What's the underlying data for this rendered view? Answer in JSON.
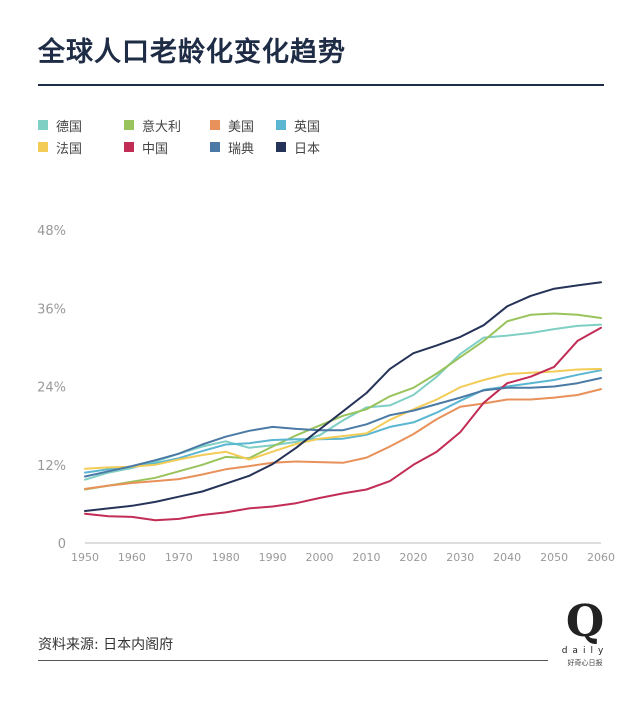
{
  "title": "全球人口老龄化变化趋势",
  "source": "资料来源: 日本内阁府",
  "logo": {
    "letter": "Q",
    "word": "daily",
    "sub": "好奇心日报"
  },
  "colors": {
    "title": "#1e2c45",
    "axis": "#999999"
  },
  "chart_data": {
    "type": "line",
    "title": "全球人口老龄化变化趋势",
    "xlabel": "",
    "ylabel": "",
    "x": [
      1950,
      1955,
      1960,
      1965,
      1970,
      1975,
      1980,
      1985,
      1990,
      1995,
      2000,
      2005,
      2010,
      2015,
      2020,
      2025,
      2030,
      2035,
      2040,
      2045,
      2050,
      2055,
      2060
    ],
    "xticks": [
      "1950",
      "1960",
      "1970",
      "1980",
      "1990",
      "2000",
      "2010",
      "2020",
      "2030",
      "2040",
      "2050",
      "2060"
    ],
    "yticks": [
      "0",
      "12%",
      "24%",
      "36%",
      "48%"
    ],
    "ylim": [
      0,
      48
    ],
    "xlim": [
      1950,
      2060
    ],
    "grid": false,
    "legend_position": "top-left",
    "series": [
      {
        "name": "德国",
        "color": "#7fcfc4",
        "values": [
          9.7,
          10.8,
          11.5,
          12.5,
          13.7,
          14.8,
          15.6,
          14.6,
          15.0,
          15.5,
          16.5,
          18.8,
          20.8,
          21.1,
          22.7,
          25.5,
          29.0,
          31.5,
          31.8,
          32.2,
          32.8,
          33.3,
          33.5
        ]
      },
      {
        "name": "意大利",
        "color": "#99c35c",
        "values": [
          8.2,
          8.8,
          9.4,
          10.0,
          11.0,
          12.0,
          13.2,
          13.0,
          14.8,
          16.5,
          18.0,
          19.5,
          20.5,
          22.5,
          23.8,
          26.0,
          28.5,
          31.0,
          34.0,
          35.0,
          35.2,
          35.0,
          34.5
        ]
      },
      {
        "name": "美国",
        "color": "#e8915a",
        "values": [
          8.3,
          8.8,
          9.2,
          9.5,
          9.8,
          10.5,
          11.3,
          11.8,
          12.3,
          12.5,
          12.4,
          12.3,
          13.1,
          14.8,
          16.7,
          19.0,
          20.9,
          21.4,
          22.0,
          22.0,
          22.3,
          22.7,
          23.6
        ]
      },
      {
        "name": "英国",
        "color": "#5bb6d1",
        "values": [
          10.8,
          11.3,
          11.7,
          12.2,
          13.0,
          14.1,
          15.1,
          15.3,
          15.8,
          15.9,
          15.9,
          16.0,
          16.6,
          17.8,
          18.5,
          20.0,
          21.8,
          23.5,
          24.0,
          24.5,
          25.0,
          25.8,
          26.5
        ]
      },
      {
        "name": "法国",
        "color": "#f3cc57",
        "values": [
          11.4,
          11.6,
          11.7,
          12.0,
          12.8,
          13.5,
          14.0,
          12.8,
          14.0,
          15.2,
          16.0,
          16.4,
          16.8,
          18.9,
          20.5,
          22.0,
          23.9,
          25.0,
          25.9,
          26.1,
          26.3,
          26.6,
          26.7
        ]
      },
      {
        "name": "中国",
        "color": "#c22d56",
        "values": [
          4.5,
          4.1,
          4.0,
          3.5,
          3.7,
          4.3,
          4.7,
          5.3,
          5.6,
          6.1,
          6.9,
          7.6,
          8.2,
          9.5,
          12.0,
          14.0,
          17.0,
          21.5,
          24.5,
          25.5,
          27.0,
          31.0,
          33.0
        ]
      },
      {
        "name": "瑞典",
        "color": "#4a7aa5",
        "values": [
          10.2,
          11.0,
          11.8,
          12.7,
          13.7,
          15.1,
          16.3,
          17.2,
          17.8,
          17.5,
          17.3,
          17.3,
          18.2,
          19.6,
          20.3,
          21.3,
          22.3,
          23.4,
          23.8,
          23.8,
          24.0,
          24.5,
          25.3
        ]
      },
      {
        "name": "日本",
        "color": "#253358",
        "values": [
          4.9,
          5.3,
          5.7,
          6.3,
          7.1,
          7.9,
          9.1,
          10.3,
          12.1,
          14.6,
          17.4,
          20.2,
          23.0,
          26.7,
          29.1,
          30.3,
          31.6,
          33.4,
          36.3,
          37.9,
          39.0,
          39.5,
          40.0
        ]
      }
    ]
  }
}
